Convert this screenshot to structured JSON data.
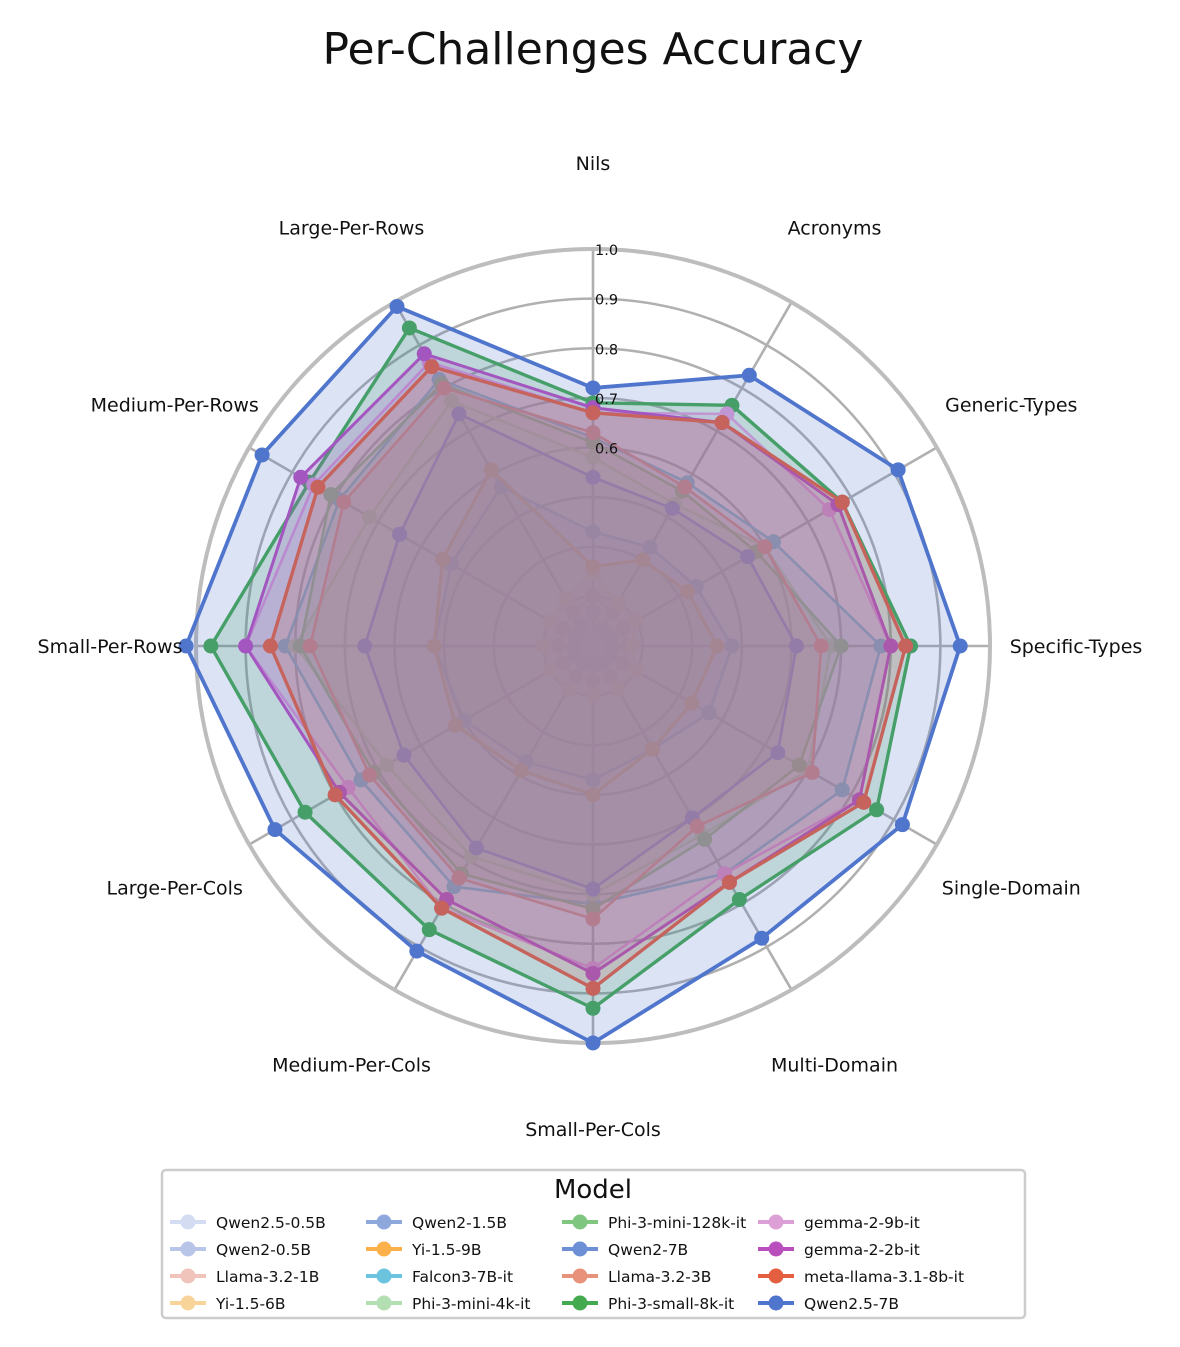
{
  "chart_data": {
    "type": "radar",
    "title": "Per-Challenges Accuracy",
    "categories": [
      "Nils",
      "Acronyms",
      "Generic-Types",
      "Specific-Types",
      "Single-Domain",
      "Multi-Domain",
      "Small-Per-Cols",
      "Medium-Per-Cols",
      "Large-Per-Cols",
      "Small-Per-Rows",
      "Medium-Per-Rows",
      "Large-Per-Rows"
    ],
    "rlim": [
      0.2,
      1.0
    ],
    "ticks": [
      "0.6",
      "0.7",
      "0.8",
      "0.9",
      "1.0"
    ],
    "tick_values": [
      0.6,
      0.7,
      0.8,
      0.9,
      1.0
    ],
    "grid": true,
    "legend": {
      "title": "Model",
      "placement": "bottom",
      "columns": 4
    },
    "series": [
      {
        "name": "Qwen2.5-0.5B",
        "color": "#d3dcf0",
        "width": 2.2,
        "alpha": 0.2,
        "values": [
          0.22,
          0.22,
          0.22,
          0.22,
          0.22,
          0.22,
          0.22,
          0.22,
          0.22,
          0.22,
          0.22,
          0.22
        ]
      },
      {
        "name": "Qwen2-0.5B",
        "color": "#b8c4e8",
        "width": 2.2,
        "alpha": 0.2,
        "values": [
          0.27,
          0.24,
          0.24,
          0.24,
          0.24,
          0.24,
          0.24,
          0.24,
          0.24,
          0.24,
          0.24,
          0.25
        ]
      },
      {
        "name": "Llama-3.2-1B",
        "color": "#f0c4ba",
        "width": 2.2,
        "alpha": 0.2,
        "values": [
          0.3,
          0.28,
          0.27,
          0.27,
          0.27,
          0.27,
          0.27,
          0.27,
          0.27,
          0.27,
          0.27,
          0.28
        ]
      },
      {
        "name": "Yi-1.5-6B",
        "color": "#f9d49a",
        "width": 2.2,
        "alpha": 0.2,
        "values": [
          0.35,
          0.3,
          0.3,
          0.28,
          0.3,
          0.3,
          0.3,
          0.3,
          0.3,
          0.3,
          0.3,
          0.31
        ]
      },
      {
        "name": "Qwen2-1.5B",
        "color": "#8fa8dc",
        "width": 2.6,
        "alpha": 0.2,
        "values": [
          0.43,
          0.43,
          0.44,
          0.48,
          0.47,
          0.44,
          0.47,
          0.47,
          0.5,
          0.52,
          0.53,
          0.57
        ]
      },
      {
        "name": "Yi-1.5-9B",
        "color": "#fbb04a",
        "width": 3.2,
        "alpha": 0.2,
        "values": [
          0.36,
          0.4,
          0.42,
          0.45,
          0.43,
          0.44,
          0.5,
          0.49,
          0.52,
          0.52,
          0.55,
          0.61
        ]
      },
      {
        "name": "Falcon3-7B-it",
        "color": "#6bc3dd",
        "width": 2.6,
        "alpha": 0.2,
        "values": [
          0.62,
          0.58,
          0.62,
          0.78,
          0.78,
          0.73,
          0.72,
          0.76,
          0.74,
          0.82,
          0.79,
          0.82
        ]
      },
      {
        "name": "Phi-3-mini-4k-it",
        "color": "#b3dfb3",
        "width": 2.6,
        "alpha": 0.2,
        "values": [
          0.58,
          0.53,
          0.6,
          0.68,
          0.7,
          0.64,
          0.7,
          0.69,
          0.68,
          0.8,
          0.72,
          0.77
        ]
      },
      {
        "name": "Phi-3-mini-128k-it",
        "color": "#7fc780",
        "width": 2.6,
        "alpha": 0.2,
        "values": [
          0.61,
          0.56,
          0.58,
          0.7,
          0.68,
          0.65,
          0.73,
          0.73,
          0.71,
          0.79,
          0.81,
          0.81
        ]
      },
      {
        "name": "Qwen2-7B",
        "color": "#6d8fd6",
        "width": 2.6,
        "alpha": 0.2,
        "values": [
          0.54,
          0.52,
          0.56,
          0.61,
          0.63,
          0.6,
          0.69,
          0.67,
          0.64,
          0.66,
          0.65,
          0.74
        ]
      },
      {
        "name": "Llama-3.2-3B",
        "color": "#e8927c",
        "width": 2.6,
        "alpha": 0.2,
        "values": [
          0.63,
          0.57,
          0.6,
          0.66,
          0.71,
          0.62,
          0.75,
          0.74,
          0.72,
          0.77,
          0.78,
          0.8
        ]
      },
      {
        "name": "Phi-3-small-8k-it",
        "color": "#44aa4f",
        "width": 3.4,
        "alpha": 0.2,
        "values": [
          0.69,
          0.76,
          0.78,
          0.84,
          0.86,
          0.79,
          0.93,
          0.86,
          0.87,
          0.97,
          0.86,
          0.94
        ]
      },
      {
        "name": "gemma-2-9b-it",
        "color": "#dc9fd6",
        "width": 2.6,
        "alpha": 0.2,
        "values": [
          0.67,
          0.74,
          0.75,
          0.8,
          0.82,
          0.73,
          0.85,
          0.81,
          0.77,
          0.9,
          0.85,
          0.86
        ]
      },
      {
        "name": "gemma-2-2b-it",
        "color": "#b84fbd",
        "width": 3.0,
        "alpha": 0.2,
        "values": [
          0.68,
          0.72,
          0.77,
          0.8,
          0.82,
          0.75,
          0.86,
          0.79,
          0.79,
          0.9,
          0.88,
          0.88
        ]
      },
      {
        "name": "meta-llama-3.1-8b-it",
        "color": "#e35f40",
        "width": 3.4,
        "alpha": 0.2,
        "values": [
          0.67,
          0.72,
          0.78,
          0.83,
          0.83,
          0.75,
          0.89,
          0.81,
          0.8,
          0.85,
          0.84,
          0.85
        ]
      },
      {
        "name": "Qwen2.5-7B",
        "color": "#4f75cc",
        "width": 3.8,
        "alpha": 0.2,
        "values": [
          0.72,
          0.83,
          0.91,
          0.94,
          0.92,
          0.88,
          1.0,
          0.91,
          0.94,
          1.02,
          0.97,
          0.99
        ]
      }
    ]
  }
}
